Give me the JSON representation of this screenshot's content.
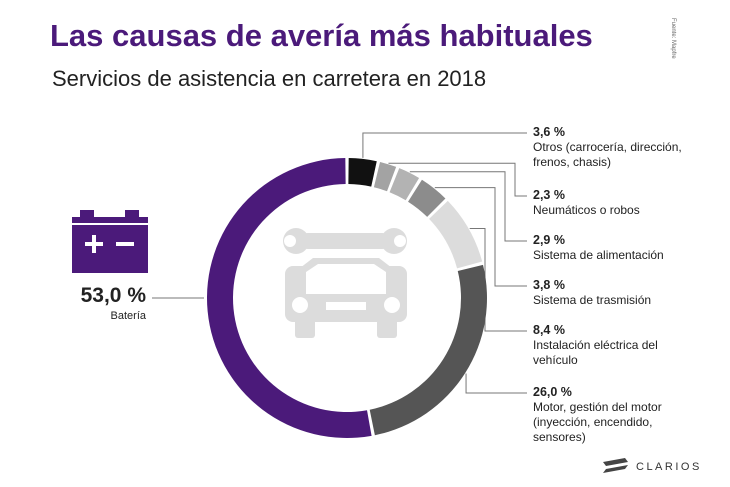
{
  "chart_data": {
    "type": "donut",
    "title": "Las causas de avería más habituales",
    "subtitle": "Servicios de asistencia en carretera en 2018",
    "source": "Fuente: Mapfre",
    "brand": "CLARIOS",
    "categories": [
      "Otros (carrocería, dirección, frenos, chasis)",
      "Neumáticos o robos",
      "Sistema de alimentación",
      "Sistema de trasmisión",
      "Instalación eléctrica del vehículo",
      "Motor, gestión del motor (inyección, encendido, sensores)",
      "Batería"
    ],
    "values": [
      3.6,
      2.3,
      2.9,
      3.8,
      8.4,
      26.0,
      53.0
    ],
    "value_labels": [
      "3,6 %",
      "2,3 %",
      "2,9 %",
      "3,8 %",
      "8,4 %",
      "26,0 %",
      "53,0 %"
    ],
    "colors": [
      "#111111",
      "#a3a3a3",
      "#b3b3b3",
      "#8c8c8c",
      "#dcdcdc",
      "#555555",
      "#4b1a7a"
    ]
  }
}
